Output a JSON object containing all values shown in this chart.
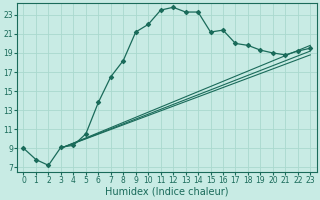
{
  "xlabel": "Humidex (Indice chaleur)",
  "ylabel": "",
  "bg_color": "#c8ebe4",
  "grid_color": "#aad9ce",
  "line_color": "#1a6b5a",
  "xlim": [
    -0.5,
    23.5
  ],
  "ylim": [
    6.5,
    24.2
  ],
  "xticks": [
    0,
    1,
    2,
    3,
    4,
    5,
    6,
    7,
    8,
    9,
    10,
    11,
    12,
    13,
    14,
    15,
    16,
    17,
    18,
    19,
    20,
    21,
    22,
    23
  ],
  "yticks": [
    7,
    9,
    11,
    13,
    15,
    17,
    19,
    21,
    23
  ],
  "curve_x": [
    0,
    1,
    2,
    3,
    4,
    5,
    6,
    7,
    8,
    9,
    10,
    11,
    12,
    13,
    14,
    15,
    16,
    17,
    18,
    19,
    20,
    21,
    22,
    23
  ],
  "curve_y": [
    9.0,
    7.8,
    7.2,
    9.1,
    9.3,
    10.5,
    13.8,
    16.5,
    18.2,
    21.2,
    22.0,
    23.5,
    23.8,
    23.3,
    23.3,
    21.2,
    21.4,
    20.0,
    19.8,
    19.3,
    19.0,
    18.8,
    19.2,
    19.5
  ],
  "line1_x": [
    3.0,
    23
  ],
  "line1_y": [
    9.0,
    19.8
  ],
  "line2_x": [
    3.0,
    23
  ],
  "line2_y": [
    9.0,
    19.2
  ],
  "line3_x": [
    3.0,
    23
  ],
  "line3_y": [
    9.0,
    18.8
  ],
  "fontsize_tick": 5.5,
  "fontsize_label": 7.0
}
